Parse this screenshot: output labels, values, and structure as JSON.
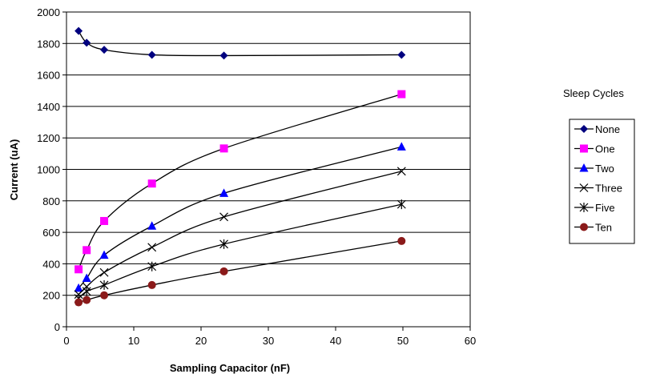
{
  "chart_data": {
    "type": "line",
    "title": "",
    "xlabel": "Sampling Capacitor (nF)",
    "ylabel": "Current (uA)",
    "xlim": [
      0,
      60
    ],
    "ylim": [
      0,
      2000
    ],
    "xticks": [
      "0",
      "10",
      "20",
      "30",
      "40",
      "50",
      "60"
    ],
    "yticks": [
      "0",
      "200",
      "400",
      "600",
      "800",
      "1000",
      "1200",
      "1400",
      "1600",
      "1800",
      "2000"
    ],
    "grid": "horizontal",
    "legend": {
      "title": "Sleep Cycles",
      "placement": "right"
    },
    "x": [
      1.8,
      3.0,
      5.6,
      12.7,
      23.4,
      49.8
    ],
    "series": [
      {
        "name": "None",
        "marker": "diamond",
        "color": "#00007f",
        "values": [
          1880,
          1805,
          1760,
          1728,
          1723,
          1728
        ]
      },
      {
        "name": "One",
        "marker": "square",
        "color": "#ff00ff",
        "values": [
          365,
          487,
          672,
          910,
          1133,
          1478
        ]
      },
      {
        "name": "Two",
        "marker": "triangle",
        "color": "#0000ff",
        "values": [
          245,
          308,
          455,
          640,
          848,
          1143
        ]
      },
      {
        "name": "Three",
        "marker": "x",
        "color": "#000000",
        "values": [
          205,
          255,
          345,
          505,
          698,
          988
        ]
      },
      {
        "name": "Five",
        "marker": "star",
        "color": "#000000",
        "values": [
          180,
          225,
          265,
          383,
          525,
          778
        ]
      },
      {
        "name": "Ten",
        "marker": "circle",
        "color": "#8b1a1a",
        "values": [
          155,
          170,
          200,
          265,
          352,
          545
        ]
      }
    ],
    "line_color": "#000000"
  }
}
